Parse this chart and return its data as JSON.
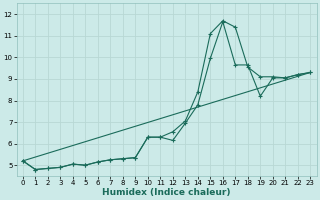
{
  "xlabel": "Humidex (Indice chaleur)",
  "ylabel": "",
  "bg_color": "#cceae8",
  "grid_color": "#b8d8d4",
  "line_color": "#1a6b5a",
  "xlim": [
    -0.5,
    23.5
  ],
  "ylim": [
    4.5,
    12.5
  ],
  "xticks": [
    0,
    1,
    2,
    3,
    4,
    5,
    6,
    7,
    8,
    9,
    10,
    11,
    12,
    13,
    14,
    15,
    16,
    17,
    18,
    19,
    20,
    21,
    22,
    23
  ],
  "yticks": [
    5,
    6,
    7,
    8,
    9,
    10,
    11,
    12
  ],
  "line1_x": [
    0,
    1,
    2,
    3,
    4,
    5,
    6,
    7,
    8,
    9,
    10,
    11,
    12,
    13,
    14,
    15,
    16,
    17,
    18,
    19,
    20,
    21,
    22,
    23
  ],
  "line1_y": [
    5.2,
    4.8,
    4.85,
    4.9,
    5.05,
    5.0,
    5.15,
    5.25,
    5.3,
    5.35,
    6.3,
    6.3,
    6.55,
    7.05,
    8.4,
    11.1,
    11.7,
    11.4,
    9.55,
    9.1,
    9.1,
    9.05,
    9.2,
    9.3
  ],
  "line2_x": [
    0,
    1,
    2,
    3,
    4,
    5,
    6,
    7,
    8,
    9,
    10,
    11,
    12,
    13,
    14,
    15,
    16,
    17,
    18,
    19,
    20,
    21,
    22,
    23
  ],
  "line2_y": [
    5.2,
    4.8,
    4.85,
    4.9,
    5.05,
    5.0,
    5.15,
    5.25,
    5.3,
    5.35,
    6.3,
    6.3,
    6.15,
    6.95,
    7.8,
    9.95,
    11.65,
    9.65,
    9.65,
    8.2,
    9.05,
    9.05,
    9.2,
    9.3
  ],
  "line3_x": [
    0,
    23
  ],
  "line3_y": [
    5.2,
    9.3
  ]
}
